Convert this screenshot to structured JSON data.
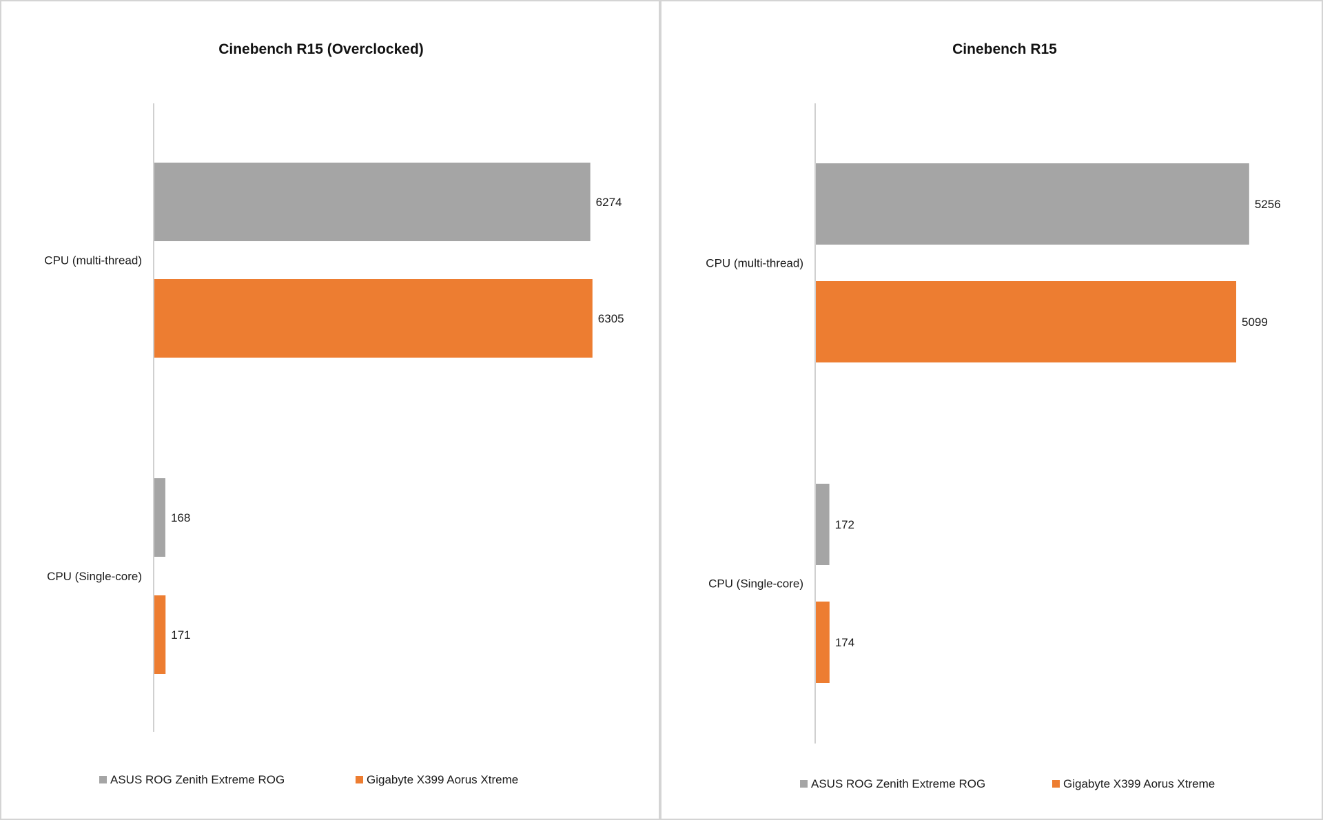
{
  "chart_data": [
    {
      "type": "bar",
      "orientation": "horizontal",
      "title": "Cinebench R15 (Overclocked)",
      "categories": [
        "CPU (multi-thread)",
        "CPU (Single-core)"
      ],
      "series": [
        {
          "name": "ASUS ROG Zenith Extreme ROG",
          "color": "#a5a5a5",
          "values": [
            6274,
            168
          ]
        },
        {
          "name": "Gigabyte X399 Aorus Xtreme",
          "color": "#ed7d31",
          "values": [
            6305,
            171
          ]
        }
      ],
      "xlim": [
        0,
        7000
      ],
      "grid": false,
      "legend": "bottom"
    },
    {
      "type": "bar",
      "orientation": "horizontal",
      "title": "Cinebench R15",
      "categories": [
        "CPU (multi-thread)",
        "CPU (Single-core)"
      ],
      "series": [
        {
          "name": "ASUS ROG Zenith Extreme ROG",
          "color": "#a5a5a5",
          "values": [
            5256,
            172
          ]
        },
        {
          "name": "Gigabyte X399 Aorus Xtreme",
          "color": "#ed7d31",
          "values": [
            5099,
            174
          ]
        }
      ],
      "xlim": [
        0,
        6000
      ],
      "grid": false,
      "legend": "bottom"
    }
  ]
}
